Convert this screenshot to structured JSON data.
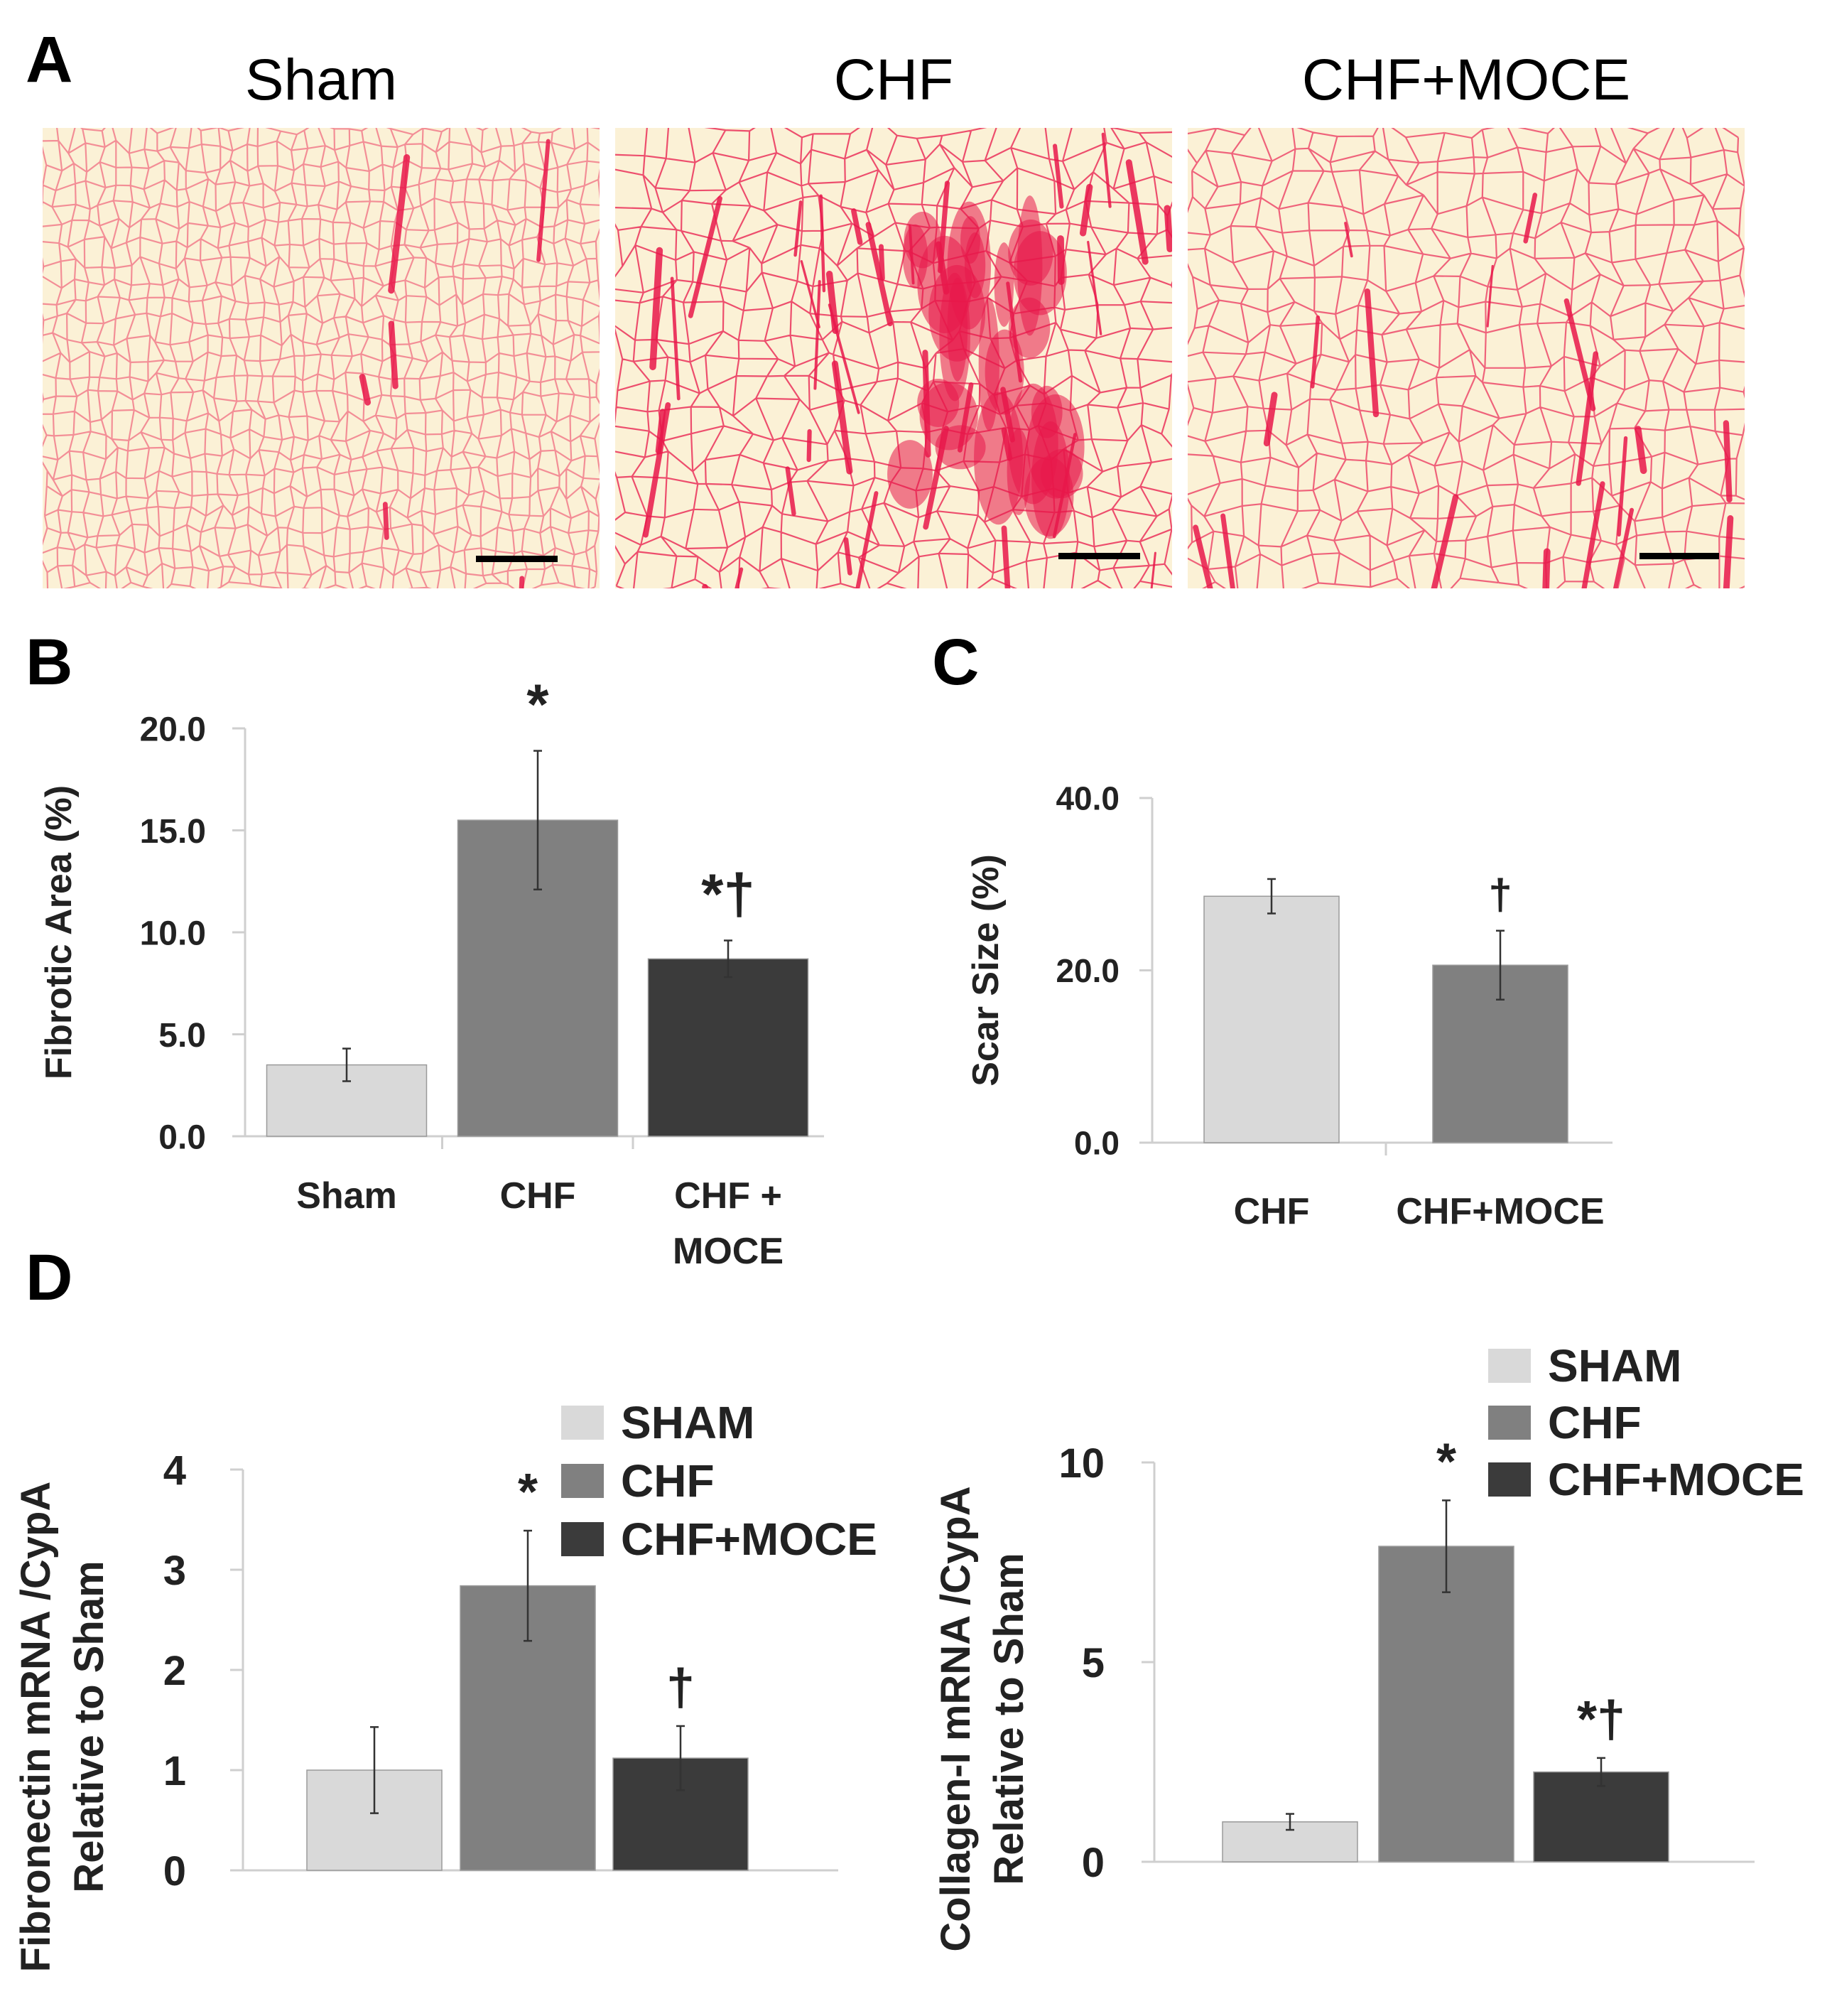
{
  "panels": {
    "a": "A",
    "b": "B",
    "c": "C",
    "d": "D"
  },
  "micrographs": {
    "titles": [
      "Sham",
      "CHF",
      "CHF+MOCE"
    ],
    "stain_color": "#e8174a",
    "background_color": "#fbf1d6"
  },
  "colors": {
    "sham": "#d9d9d9",
    "chf": "#808080",
    "moce": "#3b3b3b"
  },
  "chart_data": [
    {
      "type": "bar",
      "panel": "B",
      "categories": [
        "Sham",
        "CHF",
        "CHF +\nMOCE"
      ],
      "category_lines": [
        [
          "Sham"
        ],
        [
          "CHF"
        ],
        [
          "CHF +",
          "MOCE"
        ]
      ],
      "values": [
        3.5,
        15.5,
        8.7
      ],
      "errors": [
        0.8,
        3.4,
        0.9
      ],
      "significance": [
        "",
        "*",
        "*†"
      ],
      "ylabel": "Fibrotic Area (%)",
      "ylim": [
        0,
        20
      ],
      "yticks": [
        0,
        5,
        10,
        15,
        20
      ],
      "ytick_labels": [
        "0.0",
        "5.0",
        "10.0",
        "15.0",
        "20.0"
      ],
      "bar_colors": [
        "#d9d9d9",
        "#808080",
        "#3b3b3b"
      ],
      "grid": false,
      "legend": "none"
    },
    {
      "type": "bar",
      "panel": "C",
      "categories": [
        "CHF",
        "CHF+MOCE"
      ],
      "category_lines": [
        [
          "CHF"
        ],
        [
          "CHF+MOCE"
        ]
      ],
      "values": [
        28.6,
        20.6
      ],
      "errors": [
        2.0,
        4.0
      ],
      "significance": [
        "",
        "†"
      ],
      "ylabel": "Scar Size (%)",
      "ylim": [
        0,
        40
      ],
      "yticks": [
        0,
        20,
        40
      ],
      "ytick_labels": [
        "0.0",
        "20.0",
        "40.0"
      ],
      "bar_colors": [
        "#d9d9d9",
        "#808080"
      ],
      "grid": false,
      "legend": "none"
    },
    {
      "type": "bar",
      "panel": "D",
      "series": [
        {
          "name": "SHAM",
          "value": 1.0,
          "error": 0.43,
          "color": "#d9d9d9"
        },
        {
          "name": "CHF",
          "value": 2.84,
          "error": 0.55,
          "color": "#808080"
        },
        {
          "name": "CHF+MOCE",
          "value": 1.12,
          "error": 0.32,
          "color": "#3b3b3b"
        }
      ],
      "significance": [
        "",
        "*",
        "†"
      ],
      "ylabel_lines": [
        "Fibronectin mRNA /CypA",
        "Relative to Sham"
      ],
      "ylim": [
        0,
        4
      ],
      "yticks": [
        0,
        1,
        2,
        3,
        4
      ],
      "ytick_labels": [
        "0",
        "1",
        "2",
        "3",
        "4"
      ],
      "grid": false,
      "legend": "top-right"
    },
    {
      "type": "bar",
      "panel": "D",
      "series": [
        {
          "name": "SHAM",
          "value": 1.0,
          "error": 0.2,
          "color": "#d9d9d9"
        },
        {
          "name": "CHF",
          "value": 7.9,
          "error": 1.15,
          "color": "#808080"
        },
        {
          "name": "CHF+MOCE",
          "value": 2.25,
          "error": 0.35,
          "color": "#3b3b3b"
        }
      ],
      "significance": [
        "",
        "*",
        "*†"
      ],
      "ylabel_lines": [
        "Collagen-I mRNA /CypA",
        "Relative to Sham"
      ],
      "ylim": [
        0,
        10
      ],
      "yticks": [
        0,
        5,
        10
      ],
      "ytick_labels": [
        "0",
        "5",
        "10"
      ],
      "grid": false,
      "legend": "top-right"
    }
  ]
}
